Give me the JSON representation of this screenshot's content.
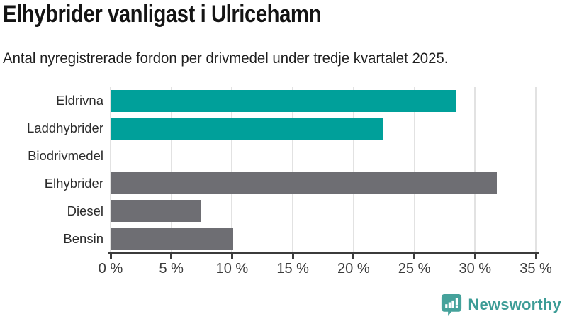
{
  "chart_data": {
    "type": "bar",
    "orientation": "horizontal",
    "title": "Elhybrider vanligast i Ulricehamn",
    "subtitle": "Antal nyregistrerade fordon per drivmedel under tredje kvartalet 2025.",
    "categories": [
      "Eldrivna",
      "Laddhybrider",
      "Biodrivmedel",
      "Elhybrider",
      "Diesel",
      "Bensin"
    ],
    "values": [
      28.4,
      22.4,
      0,
      31.8,
      7.4,
      10.1
    ],
    "value_unit": "%",
    "xlabel": "",
    "ylabel": "",
    "xlim": [
      0,
      35
    ],
    "x_tick_values": [
      0,
      5,
      10,
      15,
      20,
      25,
      30,
      35
    ],
    "x_tick_labels": [
      "0 %",
      "5 %",
      "10 %",
      "15 %",
      "20 %",
      "25 %",
      "30 %",
      "35 %"
    ],
    "grid": true,
    "legend": "none",
    "colors": {
      "highlight": "#00a09a",
      "default": "#6e6e73",
      "bar_colors": [
        "#00a09a",
        "#00a09a",
        "#6e6e73",
        "#6e6e73",
        "#6e6e73",
        "#6e6e73"
      ],
      "gridline": "#e2e2e2",
      "axis": "#3b3b3b"
    }
  },
  "footer": {
    "brand_label": "Newsworthy",
    "brand_color": "#3c9c96",
    "logo_icon": "newsworthy-speech-bubble-chart-icon"
  }
}
